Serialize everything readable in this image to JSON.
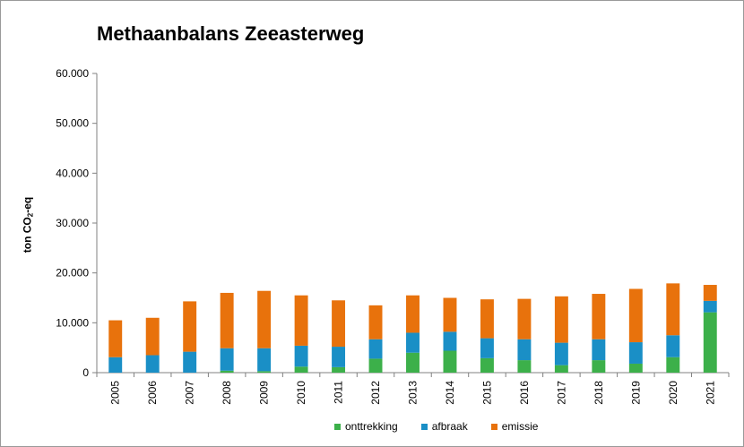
{
  "chart_data": {
    "type": "bar",
    "stacked": true,
    "title": "Methaanbalans Zeeasterweg",
    "ylabel": {
      "prefix": "ton CO",
      "subscript": "2",
      "suffix": "-eq"
    },
    "xlabel": "",
    "ylim": [
      0,
      60000
    ],
    "yticks": [
      0,
      10000,
      20000,
      30000,
      40000,
      50000,
      60000
    ],
    "ytick_labels": [
      "0",
      "10.000",
      "20.000",
      "30.000",
      "40.000",
      "50.000",
      "60.000"
    ],
    "grid": false,
    "legend_position": "bottom",
    "categories": [
      "2005",
      "2006",
      "2007",
      "2008",
      "2009",
      "2010",
      "2011",
      "2012",
      "2013",
      "2014",
      "2015",
      "2016",
      "2017",
      "2018",
      "2019",
      "2020",
      "2021"
    ],
    "series": [
      {
        "name": "onttrekking",
        "color": "#3cb04a",
        "values": [
          0,
          0,
          0,
          400,
          300,
          1200,
          1100,
          2800,
          4000,
          4400,
          2900,
          2500,
          1500,
          2500,
          1800,
          3100,
          12100
        ]
      },
      {
        "name": "afbraak",
        "color": "#1a8fc6",
        "values": [
          3100,
          3500,
          4200,
          4500,
          4600,
          4200,
          4100,
          3900,
          4000,
          3800,
          4000,
          4200,
          4500,
          4200,
          4300,
          4400,
          2300
        ]
      },
      {
        "name": "emissie",
        "color": "#e8720c",
        "values": [
          7400,
          7500,
          10100,
          11100,
          11500,
          10100,
          9300,
          6800,
          7500,
          6800,
          7800,
          8100,
          9300,
          9100,
          10700,
          10400,
          3200
        ]
      }
    ]
  }
}
